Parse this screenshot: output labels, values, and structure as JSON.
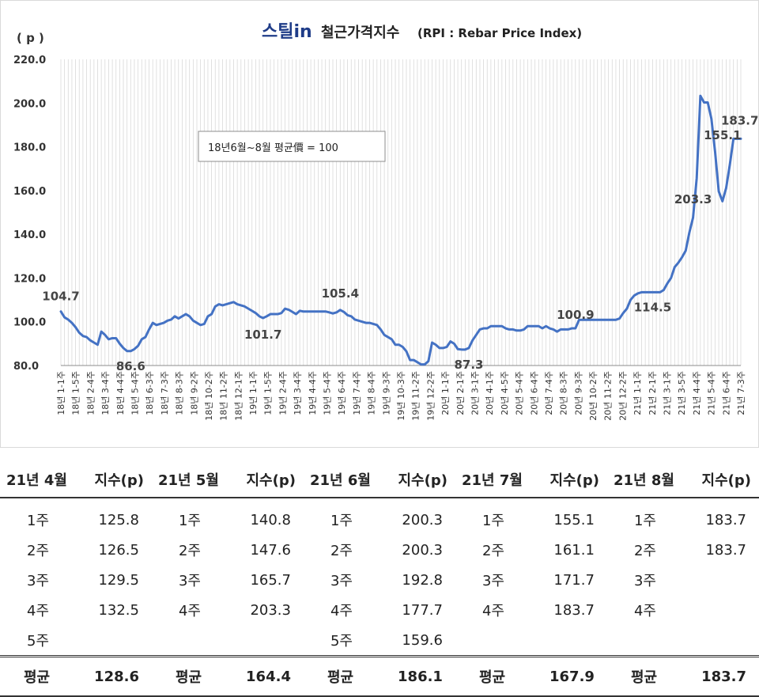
{
  "chart_data": {
    "type": "line",
    "title_logo": "스틸in",
    "title": "철근가격지수",
    "subtitle": "(RPI : Rebar Price Index)",
    "ylabel": "( p )",
    "ylim": [
      80,
      220
    ],
    "yticks": [
      "80.0",
      "100.0",
      "120.0",
      "140.0",
      "160.0",
      "180.0",
      "200.0",
      "220.0"
    ],
    "grid": "vertical",
    "annotation_box": "18년6월~8월 평균價 = 100",
    "line_color": "#4472c4",
    "x_tick_labels": [
      "18년 1-1주",
      "18년 1-5주",
      "18년 2-4주",
      "18년 3-4주",
      "18년 4-4주",
      "18년 5-4주",
      "18년 6-3주",
      "18년 7-3주",
      "18년 8-3주",
      "18년 9-2주",
      "18년 10-2주",
      "18년 11-2주",
      "18년 12-1주",
      "19년 1-1주",
      "19년 1-5주",
      "19년 2-4주",
      "19년 3-4주",
      "19년 4-4주",
      "19년 5-4주",
      "19년 6-4주",
      "19년 7-4주",
      "19년 8-4주",
      "19년 9-3주",
      "19년 10-3주",
      "19년 11-2주",
      "19년 12-2주",
      "20년 1-1주",
      "20년 2-1주",
      "20년 3-1주",
      "20년 4-1주",
      "20년 4-5주",
      "20년 5-4주",
      "20년 6-4주",
      "20년 7-4주",
      "20년 8-3주",
      "20년 9-3주",
      "20년 10-2주",
      "20년 11-2주",
      "20년 12-2주",
      "21년 1-1주",
      "21년 2-1주",
      "21년 3-1주",
      "21년 3-5주",
      "21년 4-4주",
      "21년 5-4주",
      "21년 6-4주",
      "21년 7-3주"
    ],
    "series": [
      {
        "values": [
          104.7,
          102,
          101,
          99.5,
          97.5,
          95,
          93.5,
          93,
          91.5,
          90.5,
          89.5,
          95.5,
          94,
          92,
          92.5,
          92.5,
          90,
          88,
          86.6,
          86.6,
          87.5,
          89,
          92,
          93,
          96.5,
          99.5,
          98.5,
          99,
          99.5,
          100.5,
          101,
          102.5,
          101.5,
          102.5,
          103.5,
          102.5,
          100.5,
          99.5,
          98.5,
          99,
          102.5,
          103.5,
          107,
          108,
          107.5,
          108,
          108.5,
          109,
          108,
          107.5,
          107,
          106,
          105,
          104,
          102.5,
          101.7,
          102.5,
          103.5,
          103.5,
          103.5,
          104,
          106,
          105.5,
          104.5,
          103.5,
          105,
          104.7,
          104.7,
          104.7,
          104.7,
          104.7,
          104.7,
          104.7,
          104.3,
          103.8,
          104.3,
          105.4,
          104.5,
          103,
          102.5,
          101,
          100.5,
          100,
          99.5,
          99.5,
          99,
          98.5,
          96.5,
          94,
          93,
          92,
          89.5,
          89.5,
          88.5,
          86.5,
          82.5,
          82.5,
          81.5,
          80.5,
          80.5,
          82,
          90.5,
          89.5,
          88,
          88,
          88.5,
          91,
          90,
          87.5,
          87.3,
          87.3,
          88,
          91.5,
          94,
          96.5,
          97,
          97,
          98,
          98,
          98,
          98,
          97,
          96.5,
          96.5,
          96,
          96,
          96.5,
          98,
          98,
          98,
          98,
          97,
          98,
          97,
          96.5,
          95.5,
          96.5,
          96.5,
          96.5,
          97,
          97,
          100.9,
          100.9,
          100.9,
          100.9,
          100.9,
          100.9,
          100.9,
          100.9,
          100.9,
          100.9,
          100.9,
          101.5,
          104,
          106,
          110,
          112,
          113,
          113.5,
          113.5,
          113.5,
          113.5,
          113.5,
          113.5,
          114.5,
          117.5,
          120,
          125,
          127,
          129.5,
          132.5,
          140.8,
          147.6,
          165.7,
          203.3,
          200.3,
          200.3,
          192.8,
          177.7,
          159.6,
          155.1,
          161.1,
          171.7,
          183.7,
          183.7,
          183.7
        ]
      }
    ],
    "point_labels": [
      {
        "index": 0,
        "text": "104.7"
      },
      {
        "index": 19,
        "text": "86.6"
      },
      {
        "index": 55,
        "text": "101.7"
      },
      {
        "index": 76,
        "text": "105.4"
      },
      {
        "index": 111,
        "text": "87.3"
      },
      {
        "index": 140,
        "text": "100.9"
      },
      {
        "index": 161,
        "text": "114.5"
      },
      {
        "index": 172,
        "text": "203.3"
      },
      {
        "index": 177,
        "text": "155.1"
      },
      {
        "index": 183,
        "text": "183.7"
      }
    ]
  },
  "table": {
    "headers": [
      "21년 4월",
      "지수(p)",
      "21년 5월",
      "지수(p)",
      "21년 6월",
      "지수(p)",
      "21년 7월",
      "지수(p)",
      "21년 8월",
      "지수(p)"
    ],
    "rows": [
      [
        "1주",
        "125.8",
        "1주",
        "140.8",
        "1주",
        "200.3",
        "1주",
        "155.1",
        "1주",
        "183.7"
      ],
      [
        "2주",
        "126.5",
        "2주",
        "147.6",
        "2주",
        "200.3",
        "2주",
        "161.1",
        "2주",
        "183.7"
      ],
      [
        "3주",
        "129.5",
        "3주",
        "165.7",
        "3주",
        "192.8",
        "3주",
        "171.7",
        "3주",
        ""
      ],
      [
        "4주",
        "132.5",
        "4주",
        "203.3",
        "4주",
        "177.7",
        "4주",
        "183.7",
        "4주",
        ""
      ],
      [
        "5주",
        "",
        "",
        "",
        "5주",
        "159.6",
        "",
        "",
        "",
        ""
      ]
    ],
    "average": [
      "평균",
      "128.6",
      "평균",
      "164.4",
      "평균",
      "186.1",
      "평균",
      "167.9",
      "평균",
      "183.7"
    ]
  }
}
